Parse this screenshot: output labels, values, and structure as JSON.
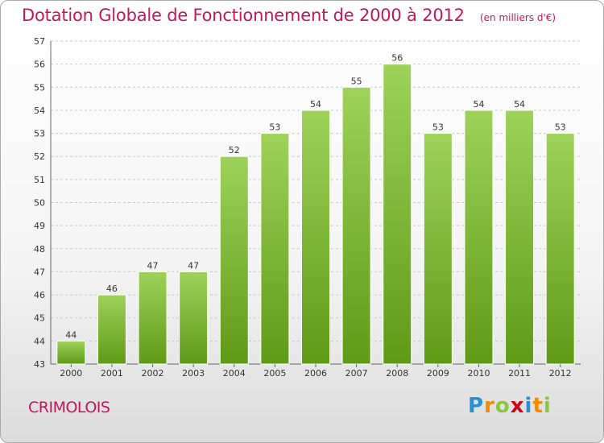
{
  "title": "Dotation Globale de Fonctionnement de 2000 à 2012",
  "subtitle": "(en milliers d'€)",
  "commune": "CRIMOLOIS",
  "logo": {
    "letters": [
      "P",
      "r",
      "o",
      "x",
      "i",
      "t",
      "i"
    ],
    "colors": [
      "#2a8fd0",
      "#f18a00",
      "#8cc63f",
      "#d0021b",
      "#2a8fd0",
      "#f18a00",
      "#8cc63f"
    ]
  },
  "colors": {
    "bar_top": "#9ed25a",
    "bar_bottom": "#5f9a16",
    "title": "#c2185b",
    "grid": "#c8c8c8"
  },
  "chart_data": {
    "type": "bar",
    "categories": [
      "2000",
      "2001",
      "2002",
      "2003",
      "2004",
      "2005",
      "2006",
      "2007",
      "2008",
      "2009",
      "2010",
      "2011",
      "2012"
    ],
    "values": [
      44,
      46,
      47,
      47,
      52,
      53,
      54,
      55,
      56,
      53,
      54,
      54,
      53
    ],
    "ylim": [
      43,
      57
    ],
    "yticks": [
      43,
      44,
      45,
      46,
      47,
      48,
      49,
      50,
      51,
      52,
      53,
      54,
      55,
      56,
      57
    ],
    "grid": true,
    "xlabel": "",
    "ylabel": ""
  }
}
